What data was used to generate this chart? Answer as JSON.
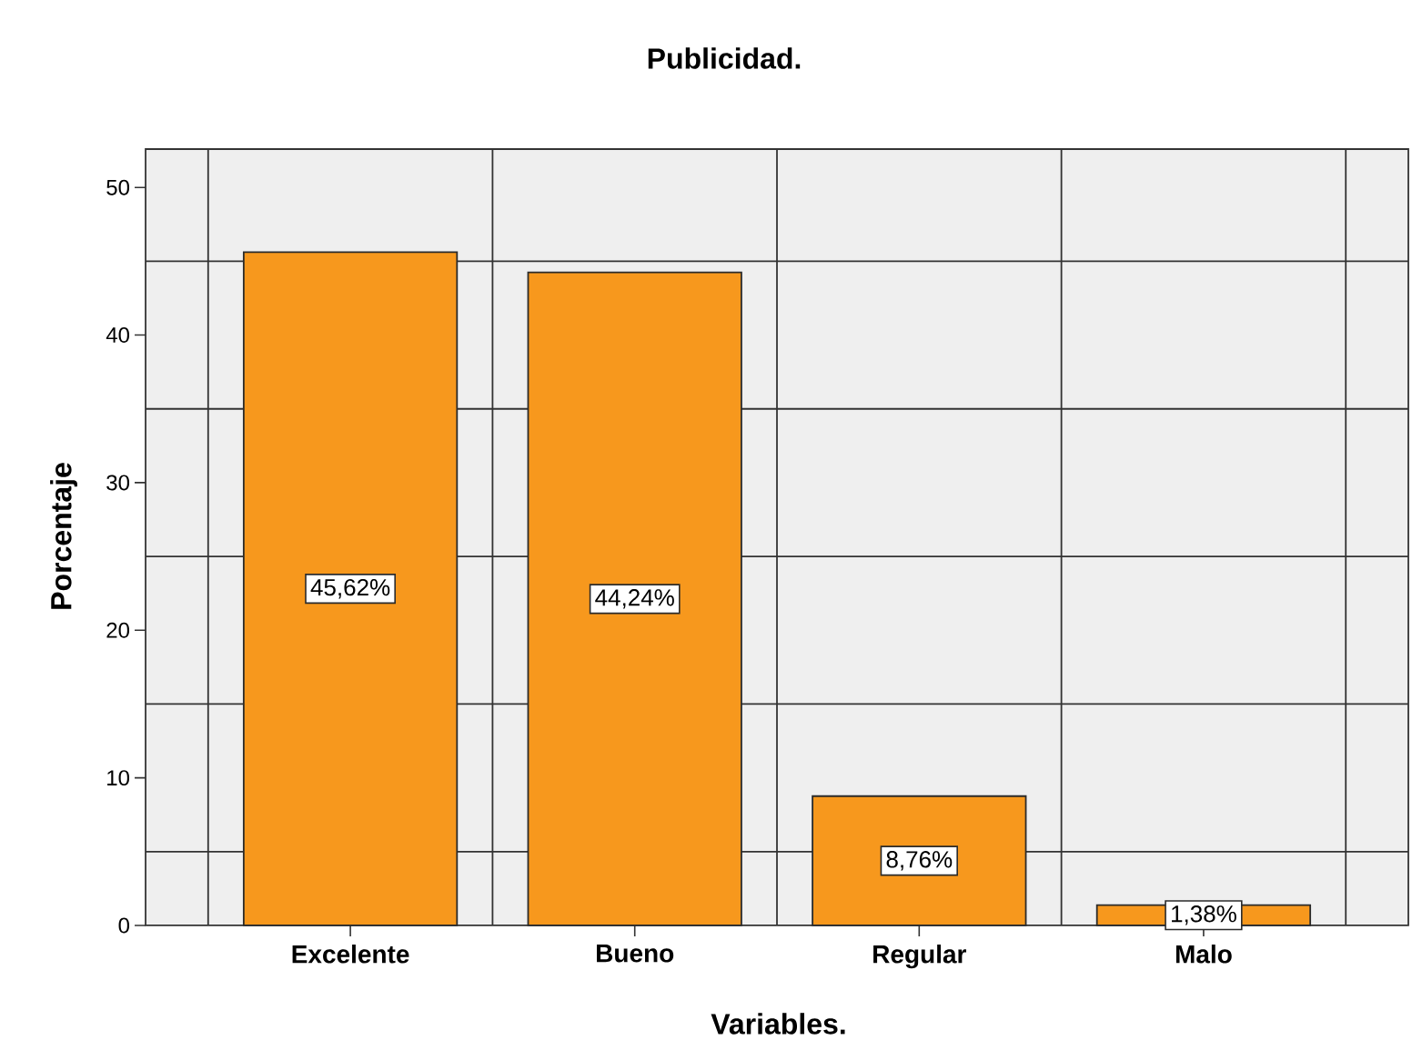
{
  "chart_data": {
    "type": "bar",
    "title": "Publicidad.",
    "xlabel": "Variables.",
    "ylabel": "Porcentaje",
    "categories": [
      "Excelente",
      "Bueno",
      "Regular",
      "Malo"
    ],
    "values": [
      45.62,
      44.24,
      8.76,
      1.38
    ],
    "value_labels": [
      "45,62%",
      "44,24%",
      "8,76%",
      "1,38%"
    ],
    "color": "#f7981d",
    "ylim": [
      0,
      52.6
    ],
    "yticks": [
      0,
      10,
      20,
      30,
      40,
      50
    ],
    "grid": true
  }
}
